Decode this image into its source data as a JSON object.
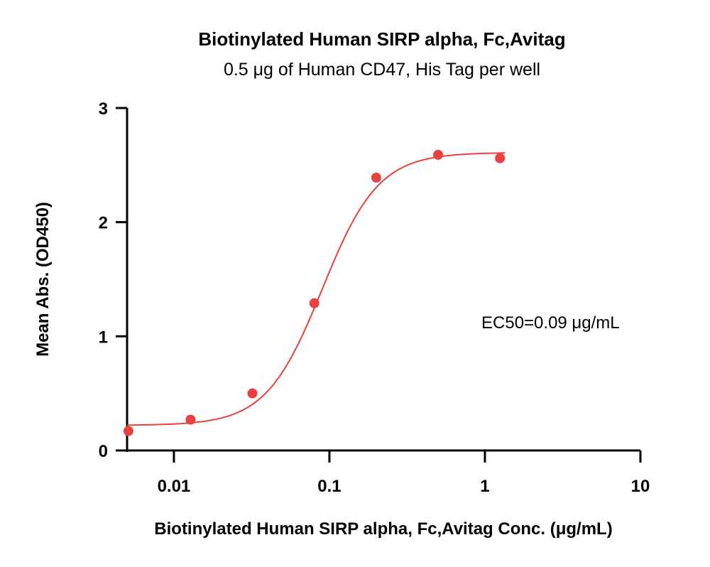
{
  "chart_data": {
    "type": "scatter",
    "title": "Biotinylated Human SIRP alpha, Fc,Avitag",
    "subtitle": "0.5 μg of Human CD47, His Tag per well",
    "xlabel": "Biotinylated Human SIRP alpha, Fc,Avitag Conc. (μg/mL)",
    "ylabel": "Mean Abs. (OD450)",
    "xscale": "log",
    "xlim": [
      0.005,
      10
    ],
    "ylim": [
      0,
      3
    ],
    "xticks": [
      0.01,
      0.1,
      1,
      10
    ],
    "xtick_labels": [
      "0.01",
      "0.1",
      "1",
      "10"
    ],
    "yticks": [
      0,
      1,
      2,
      3
    ],
    "ytick_labels": [
      "0",
      "1",
      "2",
      "3"
    ],
    "grid": false,
    "series": [
      {
        "x": [
          0.0051,
          0.0128,
          0.032,
          0.08,
          0.2,
          0.5,
          1.25
        ],
        "y": [
          0.17,
          0.27,
          0.5,
          1.29,
          2.39,
          2.59,
          2.56
        ],
        "color": "#e8413f"
      }
    ],
    "fit": {
      "type": "4PL",
      "bottom": 0.22,
      "top": 2.61,
      "ec50": 0.09,
      "hill": 2.4,
      "color": "#e8413f"
    },
    "annotation": "EC50=0.09 μg/mL"
  }
}
